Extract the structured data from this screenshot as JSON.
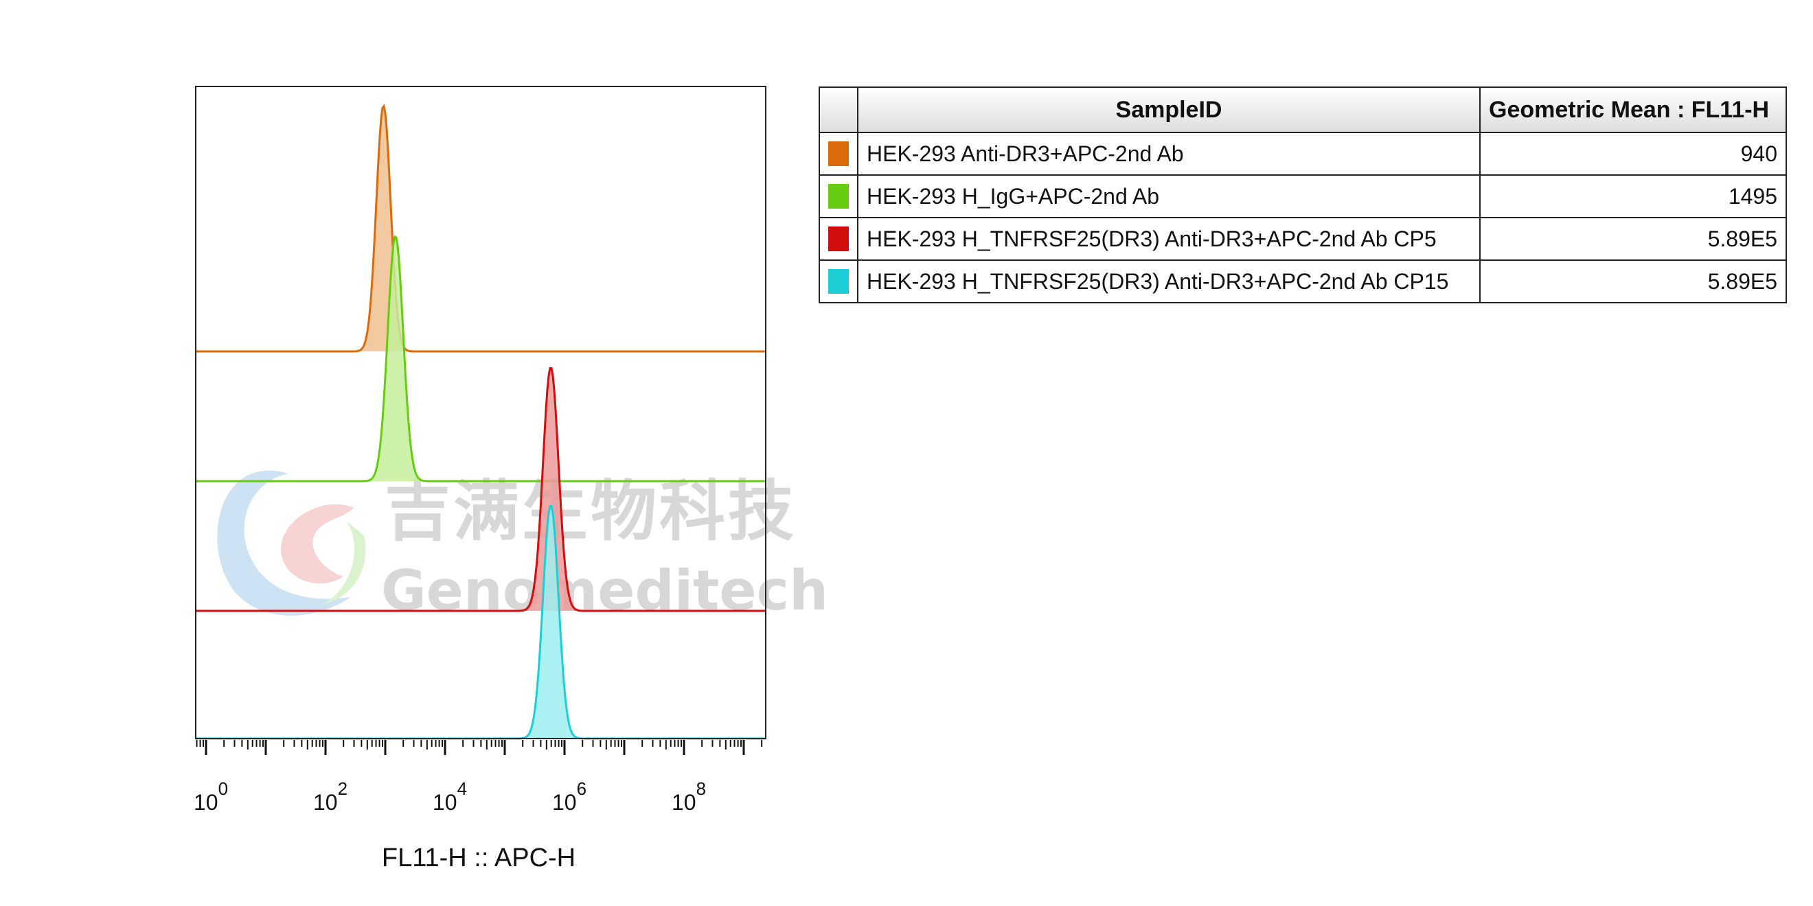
{
  "chart_data": {
    "type": "histogram-overlay",
    "x_axis": {
      "label": "FL11-H :: APC-H",
      "scale": "log",
      "tick_base": "10",
      "tick_exponents": [
        "0",
        "2",
        "4",
        "6",
        "8"
      ]
    },
    "series": [
      {
        "name": "HEK-293 Anti-DR3+APC-2nd Ab",
        "color": "#d96b0b",
        "fill": "#f0c090",
        "peak_log10": 2.97,
        "width_log10": 0.12,
        "geometric_mean": "940"
      },
      {
        "name": "HEK-293 H_IgG+APC-2nd Ab",
        "color": "#66cc11",
        "fill": "#c4ee9a",
        "peak_log10": 3.17,
        "width_log10": 0.13,
        "geometric_mean": "1495"
      },
      {
        "name": "HEK-293 H_TNFRSF25(DR3) Anti-DR3+APC-2nd Ab CP5",
        "color": "#d10d0d",
        "fill": "#ec9a9a",
        "peak_log10": 5.77,
        "width_log10": 0.13,
        "geometric_mean": "5.89E5"
      },
      {
        "name": "HEK-293 H_TNFRSF25(DR3) Anti-DR3+APC-2nd Ab CP15",
        "color": "#1ccfd6",
        "fill": "#9eeef0",
        "peak_log10": 5.77,
        "width_log10": 0.13,
        "geometric_mean": "5.89E5"
      }
    ],
    "table_headers": [
      "SampleID",
      "Geometric Mean : FL11-H"
    ]
  },
  "watermark": {
    "cn": "吉满生物科技",
    "en": "Genomeditech"
  }
}
